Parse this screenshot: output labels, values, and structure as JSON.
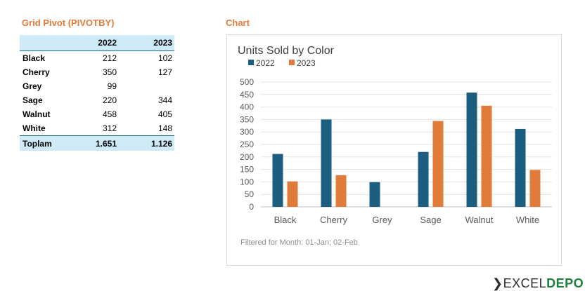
{
  "pivot": {
    "title": "Grid Pivot (PIVOTBY)",
    "headers": [
      "",
      "2022",
      "2023"
    ],
    "rows": [
      {
        "label": "Black",
        "v2022": "212",
        "v2023": "102"
      },
      {
        "label": "Cherry",
        "v2022": "350",
        "v2023": "127"
      },
      {
        "label": "Grey",
        "v2022": "99",
        "v2023": ""
      },
      {
        "label": "Sage",
        "v2022": "220",
        "v2023": "344"
      },
      {
        "label": "Walnut",
        "v2022": "458",
        "v2023": "405"
      },
      {
        "label": "White",
        "v2022": "312",
        "v2023": "148"
      }
    ],
    "total": {
      "label": "Toplam",
      "v2022": "1.651",
      "v2023": "1.126"
    },
    "header_color": "#CFEAF7",
    "border_color": "#1B6A8D"
  },
  "chart_section_title": "Chart",
  "chart_data": {
    "type": "bar",
    "title": "Units Sold by Color",
    "categories": [
      "Black",
      "Cherry",
      "Grey",
      "Sage",
      "Walnut",
      "White"
    ],
    "series": [
      {
        "name": "2022",
        "color": "#1B5E80",
        "values": [
          212,
          350,
          99,
          220,
          458,
          312
        ]
      },
      {
        "name": "2023",
        "color": "#E07B39",
        "values": [
          102,
          127,
          null,
          344,
          405,
          148
        ]
      }
    ],
    "ylim": [
      0,
      500
    ],
    "yticks": [
      0,
      50,
      100,
      150,
      200,
      250,
      300,
      350,
      400,
      450,
      500
    ],
    "grid": true,
    "legend": "top-left",
    "footnote": "Filtered for Month: 01-Jan; 02-Feb"
  },
  "logo": {
    "part1": "EXCEL",
    "part2": "DEPO"
  }
}
